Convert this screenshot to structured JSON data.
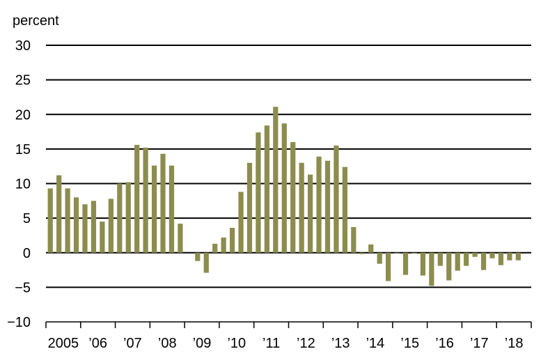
{
  "chart_data": {
    "type": "bar",
    "ylabel": "percent",
    "ylim": [
      -10,
      30
    ],
    "yticks": [
      30,
      25,
      20,
      15,
      10,
      5,
      0,
      -5,
      -10
    ],
    "ytick_labels": [
      "30",
      "25",
      "20",
      "15",
      "10",
      "5",
      "0",
      "−5",
      "−10"
    ],
    "xticks": [
      "2005",
      "’06",
      "’07",
      "’08",
      "’09",
      "’10",
      "’11",
      "’12",
      "’13",
      "’14",
      "’15",
      "’16",
      "’17",
      "’18"
    ],
    "grid": true,
    "bar_color": "#8c8c4e",
    "periods_per_year": 4,
    "values": [
      9.3,
      11.2,
      9.3,
      8.0,
      7.0,
      7.5,
      4.5,
      7.8,
      10.0,
      10.2,
      15.6,
      15.2,
      12.6,
      14.3,
      12.6,
      4.2,
      0,
      -1.2,
      -2.9,
      1.3,
      2.2,
      3.6,
      8.8,
      13.0,
      17.4,
      18.4,
      21.1,
      18.7,
      16.0,
      13.0,
      11.3,
      13.9,
      13.3,
      15.5,
      12.4,
      3.7,
      -0.2,
      1.2,
      -1.6,
      -4.1,
      -0.1,
      -3.2,
      -0.1,
      -3.3,
      -4.8,
      -1.9,
      -4.0,
      -2.6,
      -1.9,
      -0.6,
      -2.5,
      -0.8,
      -1.8,
      -1.1,
      -1.1
    ]
  }
}
